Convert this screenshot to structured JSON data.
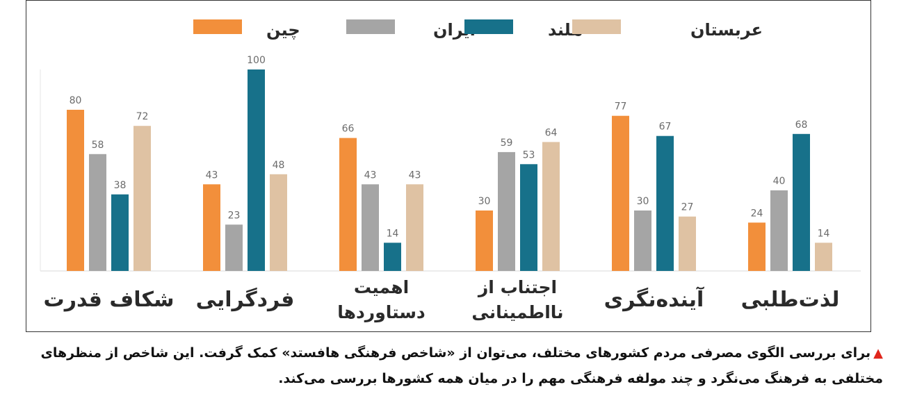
{
  "chart_data": {
    "type": "bar",
    "ylim": [
      0,
      100
    ],
    "grid": false,
    "legend_position": "top",
    "categories": [
      [
        "شکاف قدرت"
      ],
      [
        "فردگرایی"
      ],
      [
        "اهمیت",
        "دستاوردها"
      ],
      [
        "اجتناب از",
        "نااطمینانی"
      ],
      [
        "آینده‌نگری"
      ],
      [
        "لذت‌طلبی"
      ]
    ],
    "series": [
      {
        "name": "چین",
        "color": "#f28f3b",
        "values": [
          80,
          43,
          66,
          30,
          77,
          24
        ]
      },
      {
        "name": "ایران",
        "color": "#a5a5a5",
        "values": [
          58,
          23,
          43,
          59,
          30,
          40
        ]
      },
      {
        "name": "هلند",
        "color": "#17718a",
        "values": [
          38,
          100,
          14,
          53,
          67,
          68
        ]
      },
      {
        "name": "عربستان",
        "color": "#dfc2a3",
        "values": [
          72,
          48,
          43,
          64,
          27,
          14
        ]
      }
    ]
  },
  "caption": {
    "text": "برای بررسی الگوی مصرفی مردم کشورهای مختلف، می‌توان از «شاخص فرهنگی هافستد» کمک گرفت. این شاخص از منظرهای مختلفی به فرهنگ می‌نگرد و چند مولفه فرهنگی مهم را در میان همه کشورها بررسی می‌کند."
  }
}
